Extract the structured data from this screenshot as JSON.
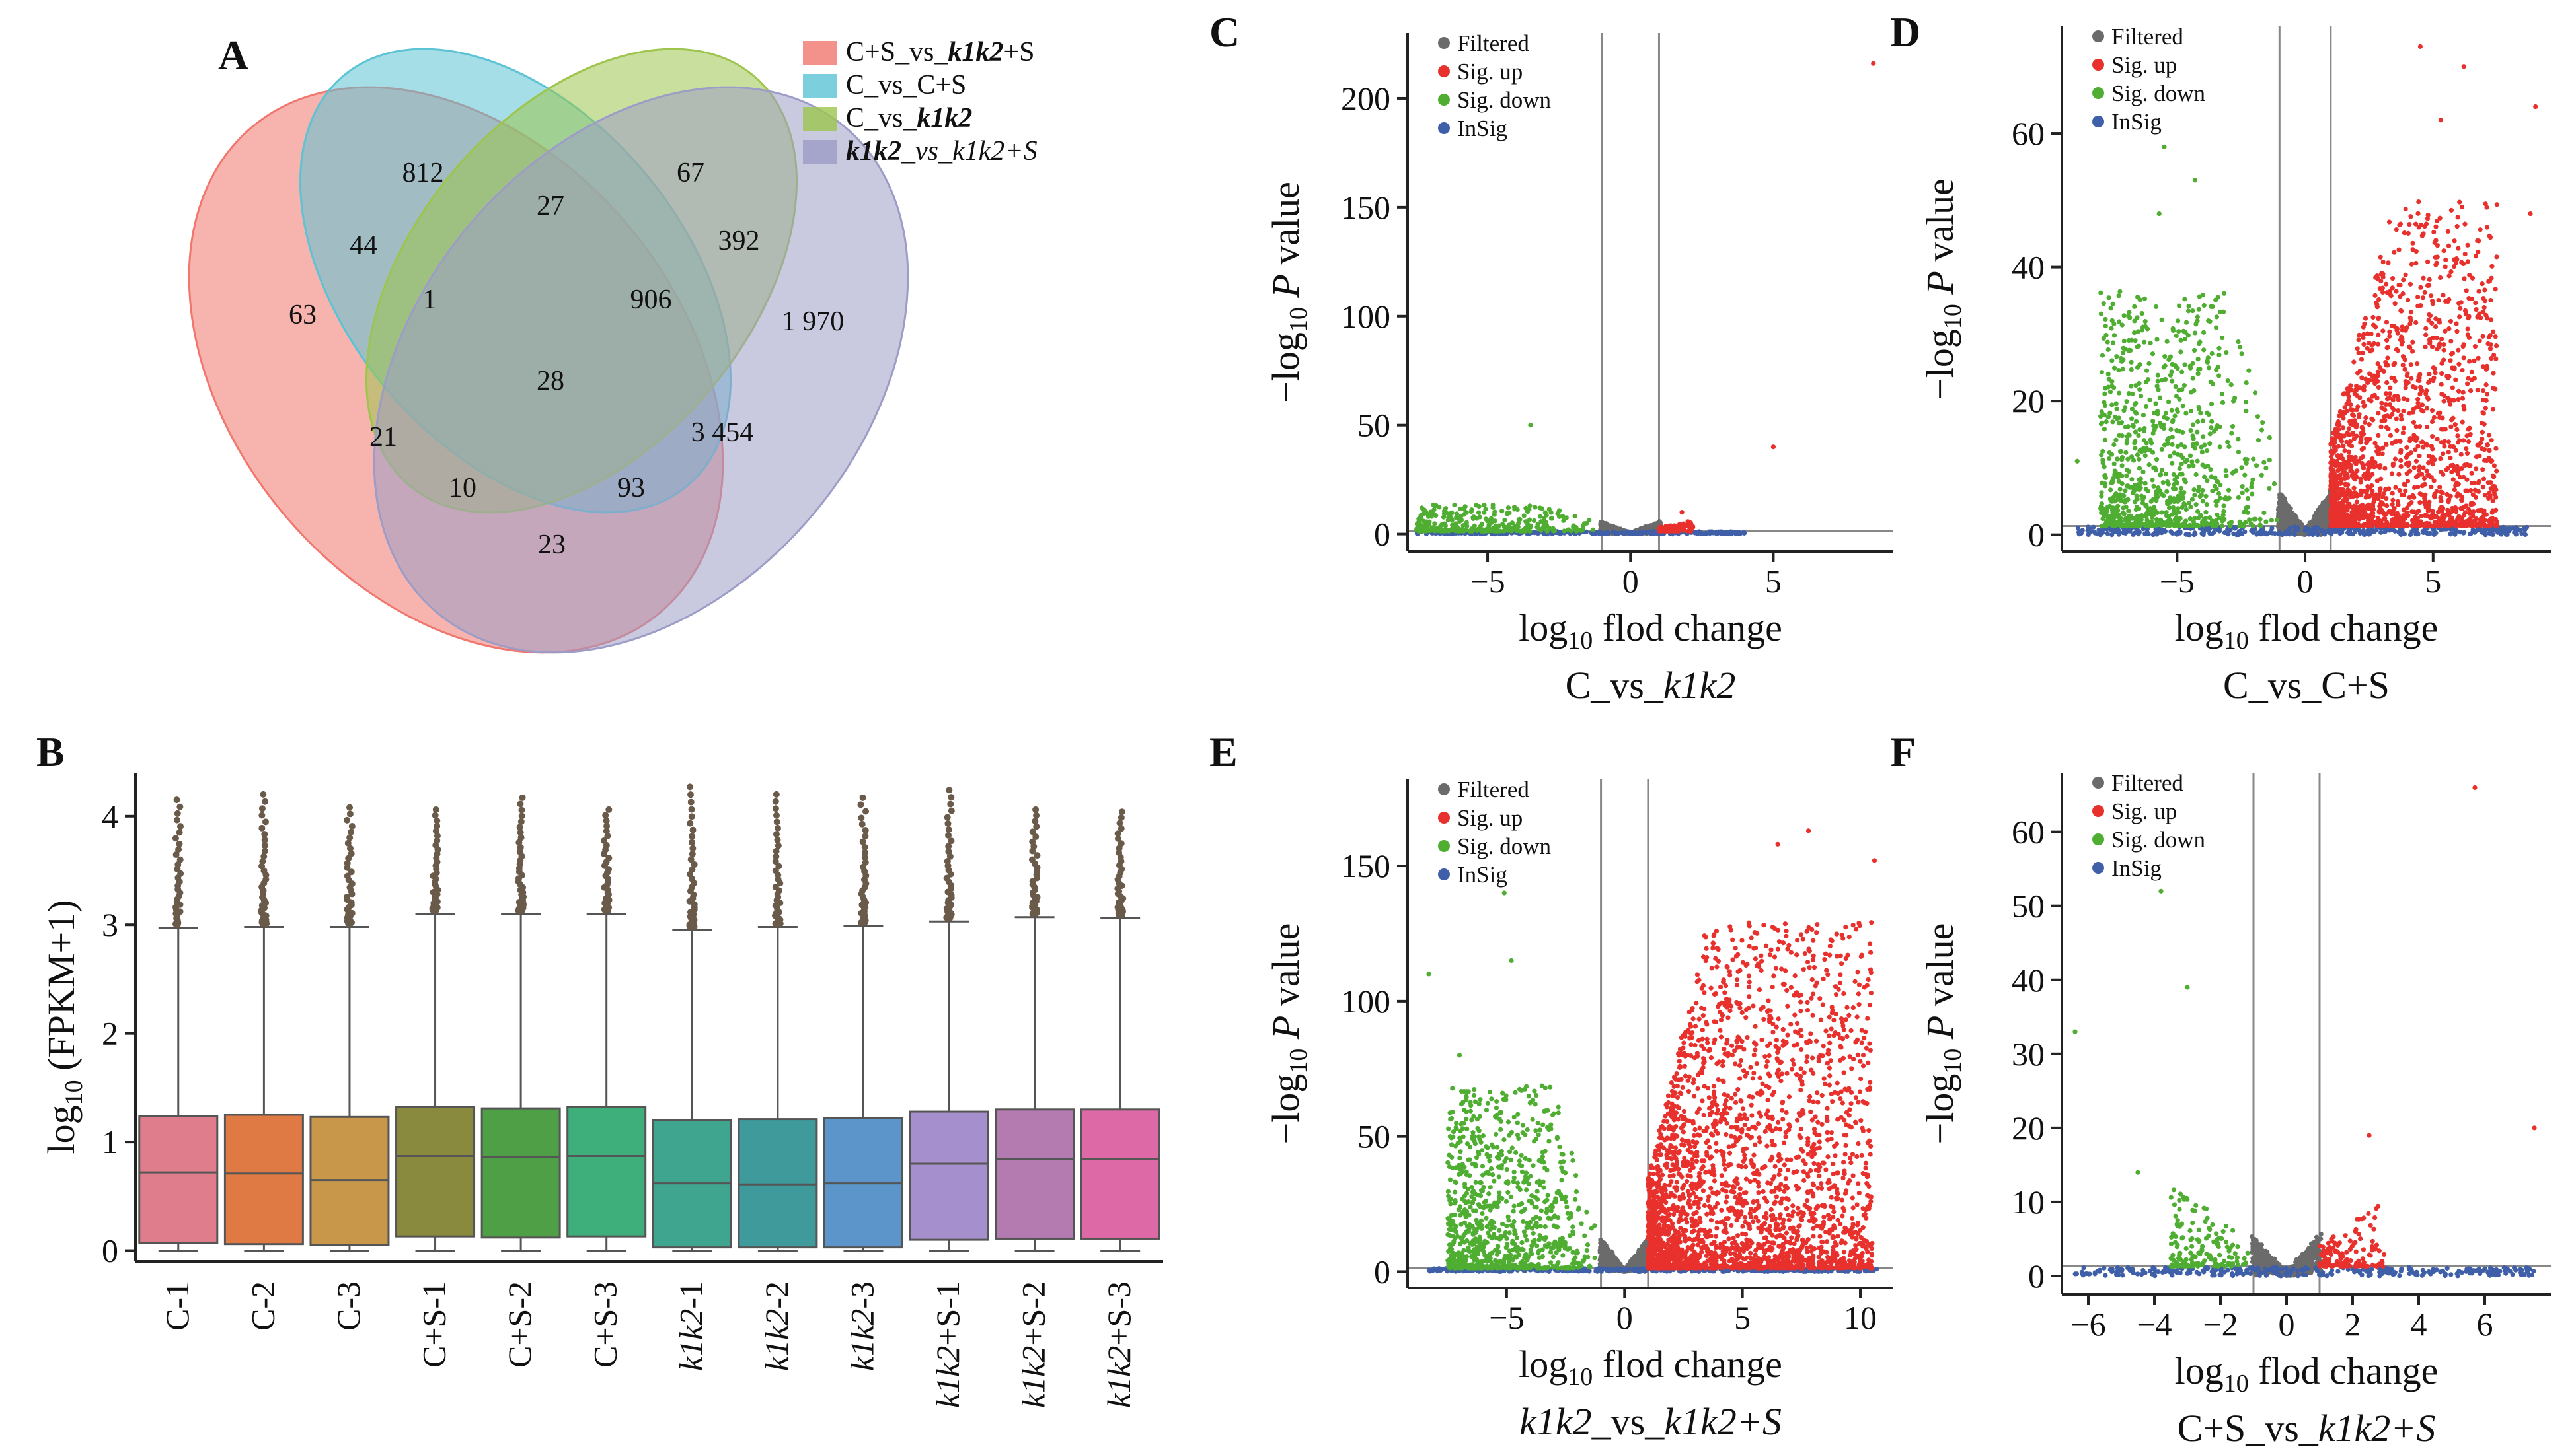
{
  "panels": {
    "A": {
      "label": "A",
      "legend": [
        {
          "pre": "C+S_vs_",
          "it": "k1k2",
          "post": "+S",
          "color": "#f0766e"
        },
        {
          "pre": "C_vs_C+S",
          "it": "",
          "post": "",
          "color": "#5bc3d3"
        },
        {
          "pre": "C_vs_",
          "it": "k1k2",
          "post": "",
          "color": "#9dc54d"
        },
        {
          "pre": "",
          "it": "k1k2",
          "post": "_vs_k1k2+S",
          "color": "#9c9cc6",
          "italic_post": true
        }
      ],
      "counts": [
        "812",
        "67",
        "63",
        "44",
        "27",
        "392",
        "1",
        "906",
        "1 970",
        "28",
        "21",
        "3 454",
        "10",
        "93",
        "23"
      ]
    },
    "B": {
      "label": "B"
    },
    "C": {
      "label": "C"
    },
    "D": {
      "label": "D"
    },
    "E": {
      "label": "E"
    },
    "F": {
      "label": "F"
    }
  },
  "volcano_legend": [
    "Filtered",
    "Sig. up",
    "Sig. down",
    "InSig"
  ],
  "volcano_colors": {
    "Filtered": "#6b6b6b",
    "Sig. up": "#e8302d",
    "Sig. down": "#4fae32",
    "InSig": "#3f5fa8"
  },
  "chart_data": [
    {
      "type": "box",
      "panel": "B",
      "ylabel": "log10 (FPKM+1)",
      "ylim": [
        -0.1,
        4.4
      ],
      "yticks": [
        0,
        1,
        2,
        3,
        4
      ],
      "categories": [
        "C-1",
        "C-2",
        "C-3",
        "C+S-1",
        "C+S-2",
        "C+S-3",
        "k1k2-1",
        "k1k2-2",
        "k1k2-3",
        "k1k2+S-1",
        "k1k2+S-2",
        "k1k2+S-3"
      ],
      "colors": [
        "#e07d8c",
        "#e07a45",
        "#c9974a",
        "#8a8a3e",
        "#4e9f45",
        "#3eae7a",
        "#3fa58e",
        "#3f9a9c",
        "#5b95c9",
        "#a58fcc",
        "#b37bb0",
        "#dd6aa6"
      ],
      "boxes": [
        {
          "whisker_low": 0,
          "q1": 0.07,
          "median": 0.72,
          "q3": 1.24,
          "whisker_high": 2.97,
          "outlier_max": 4.15
        },
        {
          "whisker_low": 0,
          "q1": 0.06,
          "median": 0.71,
          "q3": 1.25,
          "whisker_high": 2.98,
          "outlier_max": 4.2
        },
        {
          "whisker_low": 0,
          "q1": 0.05,
          "median": 0.65,
          "q3": 1.23,
          "whisker_high": 2.98,
          "outlier_max": 4.08
        },
        {
          "whisker_low": 0,
          "q1": 0.13,
          "median": 0.87,
          "q3": 1.32,
          "whisker_high": 3.1,
          "outlier_max": 4.06
        },
        {
          "whisker_low": 0,
          "q1": 0.12,
          "median": 0.86,
          "q3": 1.31,
          "whisker_high": 3.1,
          "outlier_max": 4.17
        },
        {
          "whisker_low": 0,
          "q1": 0.13,
          "median": 0.87,
          "q3": 1.32,
          "whisker_high": 3.1,
          "outlier_max": 4.06
        },
        {
          "whisker_low": 0,
          "q1": 0.03,
          "median": 0.62,
          "q3": 1.2,
          "whisker_high": 2.95,
          "outlier_max": 4.27
        },
        {
          "whisker_low": 0,
          "q1": 0.03,
          "median": 0.61,
          "q3": 1.21,
          "whisker_high": 2.98,
          "outlier_max": 4.2
        },
        {
          "whisker_low": 0,
          "q1": 0.03,
          "median": 0.62,
          "q3": 1.22,
          "whisker_high": 2.99,
          "outlier_max": 4.17
        },
        {
          "whisker_low": 0,
          "q1": 0.1,
          "median": 0.8,
          "q3": 1.28,
          "whisker_high": 3.03,
          "outlier_max": 4.24
        },
        {
          "whisker_low": 0,
          "q1": 0.11,
          "median": 0.84,
          "q3": 1.3,
          "whisker_high": 3.07,
          "outlier_max": 4.06
        },
        {
          "whisker_low": 0,
          "q1": 0.11,
          "median": 0.84,
          "q3": 1.3,
          "whisker_high": 3.06,
          "outlier_max": 4.04
        }
      ]
    },
    {
      "type": "scatter",
      "panel": "C",
      "xlabel": "log10 flod change",
      "ylabel": "-log10 P value",
      "subtitle": "C_vs_k1k2",
      "xlim": [
        -7.8,
        9.2
      ],
      "ylim": [
        -8,
        230
      ],
      "xticks": [
        -5,
        0,
        5
      ],
      "yticks": [
        0,
        50,
        100,
        150,
        200
      ],
      "fc_threshold": 1,
      "p_threshold": 1.3,
      "highlights": [
        {
          "x": 8.5,
          "y": 216,
          "s": "up"
        },
        {
          "x": 5,
          "y": 40,
          "s": "up"
        },
        {
          "x": -3.5,
          "y": 50,
          "s": "down"
        },
        {
          "x": 1.8,
          "y": 10,
          "s": "up"
        }
      ],
      "params": {
        "up": {
          "n": 90,
          "xmin": 1,
          "xmax": 2.2,
          "amp": 6,
          "seed": 3
        },
        "down": {
          "n": 320,
          "xmin": -7.5,
          "xmax": -1,
          "amp": 9,
          "seed": 7
        },
        "filt": {
          "n": 600,
          "amp": 5,
          "seed": 11
        },
        "insig": {
          "n": 300,
          "xmin": -7.5,
          "xmax": 4,
          "seed": 13
        }
      }
    },
    {
      "type": "scatter",
      "panel": "D",
      "xlabel": "log10 flod change",
      "ylabel": "-log10 P value",
      "subtitle": "C_vs_C+S",
      "xlim": [
        -9.5,
        9.6
      ],
      "ylim": [
        -2.5,
        76
      ],
      "xticks": [
        -5,
        0,
        5
      ],
      "yticks": [
        0,
        20,
        40,
        60
      ],
      "fc_threshold": 1,
      "p_threshold": 1.3,
      "highlights": [
        {
          "x": 4.5,
          "y": 73,
          "s": "up"
        },
        {
          "x": 5.3,
          "y": 62,
          "s": "up"
        },
        {
          "x": 6.2,
          "y": 70,
          "s": "up"
        },
        {
          "x": 9,
          "y": 64,
          "s": "up"
        },
        {
          "x": 8.8,
          "y": 48,
          "s": "up"
        },
        {
          "x": -5.5,
          "y": 58,
          "s": "down"
        },
        {
          "x": -4.3,
          "y": 53,
          "s": "down"
        },
        {
          "x": -5.7,
          "y": 48,
          "s": "down"
        },
        {
          "x": -8.9,
          "y": 11,
          "s": "down"
        }
      ],
      "params": {
        "up": {
          "n": 1700,
          "xmin": 1,
          "xmax": 7.5,
          "amp": 36,
          "seed": 17
        },
        "down": {
          "n": 900,
          "xmin": -8,
          "xmax": -1,
          "amp": 26,
          "seed": 19
        },
        "filt": {
          "n": 900,
          "amp": 6,
          "seed": 23
        },
        "insig": {
          "n": 400,
          "xmin": -9,
          "xmax": 9,
          "seed": 29
        }
      }
    },
    {
      "type": "scatter",
      "panel": "E",
      "xlabel": "log10 flod change",
      "ylabel": "-log10 P value",
      "subtitle": "k1k2_vs_k1k2+S",
      "xlim": [
        -9.2,
        11.4
      ],
      "ylim": [
        -6,
        182
      ],
      "xticks": [
        -5,
        0,
        5,
        10
      ],
      "yticks": [
        0,
        50,
        100,
        150
      ],
      "fc_threshold": 1,
      "p_threshold": 1.3,
      "highlights": [
        {
          "x": 7.8,
          "y": 163,
          "s": "up"
        },
        {
          "x": 6.5,
          "y": 158,
          "s": "up"
        },
        {
          "x": 10.6,
          "y": 152,
          "s": "up"
        },
        {
          "x": -5.1,
          "y": 140,
          "s": "down"
        },
        {
          "x": -4.8,
          "y": 115,
          "s": "down"
        },
        {
          "x": -8.3,
          "y": 110,
          "s": "down"
        },
        {
          "x": -7,
          "y": 80,
          "s": "down"
        }
      ],
      "params": {
        "up": {
          "n": 2600,
          "xmin": 1,
          "xmax": 10.5,
          "amp": 95,
          "seed": 31
        },
        "down": {
          "n": 900,
          "xmin": -7.5,
          "xmax": -1,
          "amp": 50,
          "seed": 37
        },
        "filt": {
          "n": 900,
          "amp": 12,
          "seed": 41
        },
        "insig": {
          "n": 400,
          "xmin": -8.5,
          "xmax": 10.7,
          "seed": 43
        }
      }
    },
    {
      "type": "scatter",
      "panel": "F",
      "xlabel": "log10 flod change",
      "ylabel": "-log10 P value",
      "subtitle": "C+S_vs_k1k2+S",
      "xlim": [
        -6.8,
        8.0
      ],
      "ylim": [
        -2.5,
        68
      ],
      "xticks": [
        -6,
        -4,
        -2,
        0,
        2,
        4,
        6
      ],
      "yticks": [
        0,
        10,
        20,
        30,
        40,
        50,
        60
      ],
      "fc_threshold": 1,
      "p_threshold": 1.3,
      "highlights": [
        {
          "x": 5.7,
          "y": 66,
          "s": "up"
        },
        {
          "x": 7.5,
          "y": 20,
          "s": "up"
        },
        {
          "x": 2.5,
          "y": 19,
          "s": "up"
        },
        {
          "x": -3.8,
          "y": 52,
          "s": "down"
        },
        {
          "x": -3,
          "y": 39,
          "s": "down"
        },
        {
          "x": -6.4,
          "y": 33,
          "s": "down"
        },
        {
          "x": -4.5,
          "y": 14,
          "s": "down"
        }
      ],
      "params": {
        "up": {
          "n": 130,
          "xmin": 1,
          "xmax": 3,
          "amp": 8,
          "seed": 47
        },
        "down": {
          "n": 160,
          "xmin": -3.5,
          "xmax": -1,
          "amp": 8,
          "seed": 53
        },
        "filt": {
          "n": 500,
          "amp": 5,
          "seed": 59
        },
        "insig": {
          "n": 300,
          "xmin": -6.5,
          "xmax": 7.5,
          "seed": 61
        }
      }
    }
  ]
}
